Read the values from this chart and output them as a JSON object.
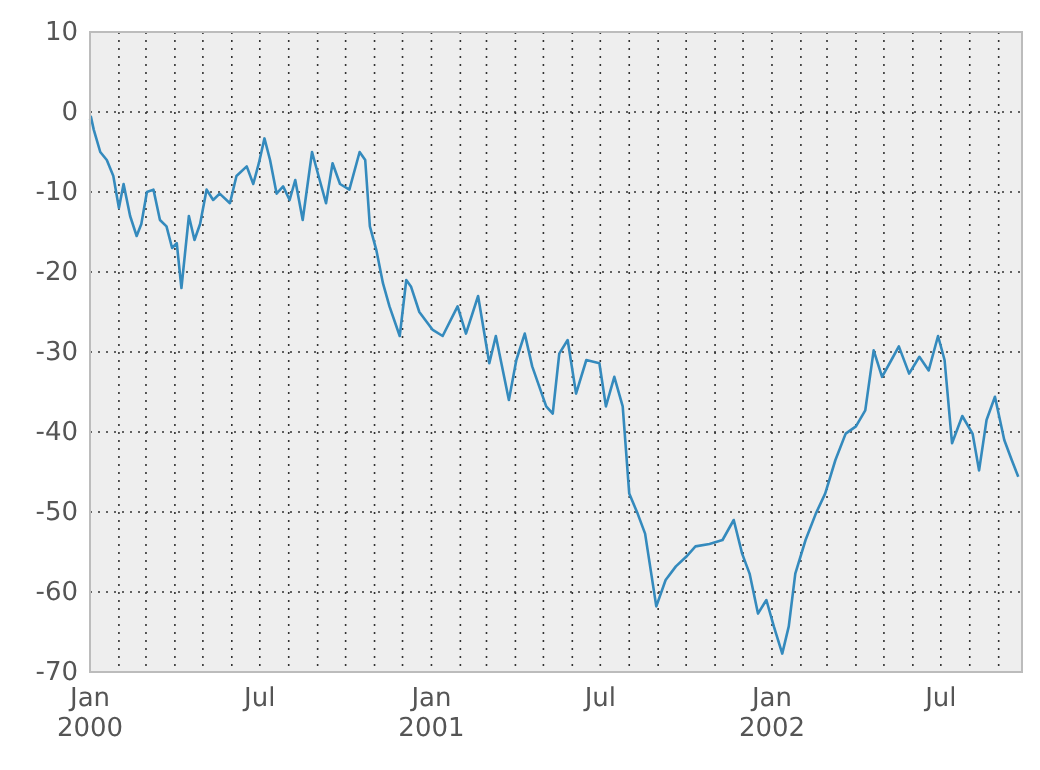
{
  "chart_data": {
    "type": "line",
    "grid": true,
    "line_style": "solid",
    "marker": "none",
    "xlim": [
      "2000-01-01",
      "2002-09-26"
    ],
    "ylim": [
      -70,
      10
    ],
    "yticks": [
      -70,
      -60,
      -50,
      -40,
      -30,
      -20,
      -10,
      0,
      10
    ],
    "xticks": [
      {
        "value": "2000-01-01",
        "label": "Jan\n2000"
      },
      {
        "value": "2000-02-01",
        "label": null
      },
      {
        "value": "2000-03-01",
        "label": null
      },
      {
        "value": "2000-04-01",
        "label": null
      },
      {
        "value": "2000-05-01",
        "label": null
      },
      {
        "value": "2000-06-01",
        "label": null
      },
      {
        "value": "2000-07-01",
        "label": "Jul"
      },
      {
        "value": "2000-08-01",
        "label": null
      },
      {
        "value": "2000-09-01",
        "label": null
      },
      {
        "value": "2000-10-01",
        "label": null
      },
      {
        "value": "2000-11-01",
        "label": null
      },
      {
        "value": "2000-12-01",
        "label": null
      },
      {
        "value": "2001-01-01",
        "label": "Jan\n2001"
      },
      {
        "value": "2001-02-01",
        "label": null
      },
      {
        "value": "2001-03-01",
        "label": null
      },
      {
        "value": "2001-04-01",
        "label": null
      },
      {
        "value": "2001-05-01",
        "label": null
      },
      {
        "value": "2001-06-01",
        "label": null
      },
      {
        "value": "2001-07-01",
        "label": "Jul"
      },
      {
        "value": "2001-08-01",
        "label": null
      },
      {
        "value": "2001-09-01",
        "label": null
      },
      {
        "value": "2001-10-01",
        "label": null
      },
      {
        "value": "2001-11-01",
        "label": null
      },
      {
        "value": "2001-12-01",
        "label": null
      },
      {
        "value": "2002-01-01",
        "label": "Jan\n2002"
      },
      {
        "value": "2002-02-01",
        "label": null
      },
      {
        "value": "2002-03-01",
        "label": null
      },
      {
        "value": "2002-04-01",
        "label": null
      },
      {
        "value": "2002-05-01",
        "label": null
      },
      {
        "value": "2002-06-01",
        "label": null
      },
      {
        "value": "2002-07-01",
        "label": "Jul"
      },
      {
        "value": "2002-08-01",
        "label": null
      },
      {
        "value": "2002-09-01",
        "label": null
      }
    ],
    "x": [
      "2000-01-01",
      "2000-01-02",
      "2000-01-05",
      "2000-01-12",
      "2000-01-19",
      "2000-01-26",
      "2000-02-01",
      "2000-02-06",
      "2000-02-13",
      "2000-02-20",
      "2000-02-25",
      "2000-03-02",
      "2000-03-09",
      "2000-03-16",
      "2000-03-23",
      "2000-03-29",
      "2000-04-03",
      "2000-04-08",
      "2000-04-16",
      "2000-04-22",
      "2000-04-28",
      "2000-05-05",
      "2000-05-12",
      "2000-05-19",
      "2000-05-30",
      "2000-06-06",
      "2000-06-17",
      "2000-06-24",
      "2000-06-30",
      "2000-07-06",
      "2000-07-12",
      "2000-07-19",
      "2000-07-26",
      "2000-08-02",
      "2000-08-08",
      "2000-08-16",
      "2000-08-26",
      "2000-09-02",
      "2000-09-10",
      "2000-09-17",
      "2000-09-25",
      "2000-10-05",
      "2000-10-16",
      "2000-10-22",
      "2000-10-27",
      "2000-11-03",
      "2000-11-10",
      "2000-11-17",
      "2000-11-28",
      "2000-12-05",
      "2000-12-10",
      "2000-12-19",
      "2001-01-02",
      "2001-01-13",
      "2001-01-29",
      "2001-02-07",
      "2001-02-20",
      "2001-03-04",
      "2001-03-11",
      "2001-03-25",
      "2001-04-02",
      "2001-04-11",
      "2001-04-19",
      "2001-05-04",
      "2001-05-11",
      "2001-05-18",
      "2001-05-27",
      "2001-06-05",
      "2001-06-16",
      "2001-06-30",
      "2001-07-07",
      "2001-07-16",
      "2001-07-25",
      "2001-08-01",
      "2001-08-10",
      "2001-08-18",
      "2001-08-30",
      "2001-09-09",
      "2001-09-20",
      "2001-10-01",
      "2001-10-11",
      "2001-10-26",
      "2001-11-09",
      "2001-11-21",
      "2001-11-30",
      "2001-12-08",
      "2001-12-17",
      "2001-12-26",
      "2002-01-03",
      "2002-01-12",
      "2002-01-19",
      "2002-01-26",
      "2002-02-06",
      "2002-02-17",
      "2002-02-27",
      "2002-03-10",
      "2002-03-21",
      "2002-04-01",
      "2002-04-11",
      "2002-04-20",
      "2002-04-29",
      "2002-05-09",
      "2002-05-17",
      "2002-05-28",
      "2002-06-08",
      "2002-06-18",
      "2002-06-28",
      "2002-07-05",
      "2002-07-13",
      "2002-07-24",
      "2002-08-04",
      "2002-08-11",
      "2002-08-19",
      "2002-08-28",
      "2002-09-07",
      "2002-09-15",
      "2002-09-22"
    ],
    "series": [
      {
        "color": "#348abd",
        "values": [
          -1,
          -0.6,
          -2.2,
          -5,
          -6,
          -8,
          -12,
          -9,
          -13,
          -15.5,
          -14,
          -10,
          -9.7,
          -13.5,
          -14.3,
          -17,
          -16.4,
          -22,
          -13,
          -16,
          -14,
          -9.7,
          -11,
          -10.2,
          -11.4,
          -8,
          -6.8,
          -9,
          -6.4,
          -3.3,
          -6,
          -10.2,
          -9.3,
          -11,
          -8.5,
          -13.5,
          -5,
          -8,
          -11.4,
          -6.4,
          -9,
          -9.7,
          -5,
          -6,
          -14.3,
          -17.3,
          -21.4,
          -24.3,
          -28,
          -21,
          -21.8,
          -25,
          -27.2,
          -28,
          -24.3,
          -27.7,
          -23,
          -31.4,
          -28,
          -36,
          -31,
          -27.7,
          -31.8,
          -36.8,
          -37.7,
          -30.2,
          -28.5,
          -35.2,
          -31,
          -31.4,
          -36.8,
          -33.1,
          -36.8,
          -47.7,
          -50.2,
          -52.7,
          -61.8,
          -58.5,
          -56.8,
          -55.6,
          -54.3,
          -54,
          -53.5,
          -51,
          -55.2,
          -57.7,
          -62.7,
          -61,
          -64.3,
          -67.7,
          -64.3,
          -57.7,
          -53.5,
          -50.2,
          -47.7,
          -43.5,
          -40.2,
          -39.3,
          -37.3,
          -29.8,
          -33.1,
          -31,
          -29.3,
          -32.7,
          -30.6,
          -32.3,
          -28,
          -31,
          -41.4,
          -38,
          -40.2,
          -44.8,
          -38.5,
          -35.6,
          -41,
          -43.5,
          -45.6
        ]
      }
    ]
  }
}
